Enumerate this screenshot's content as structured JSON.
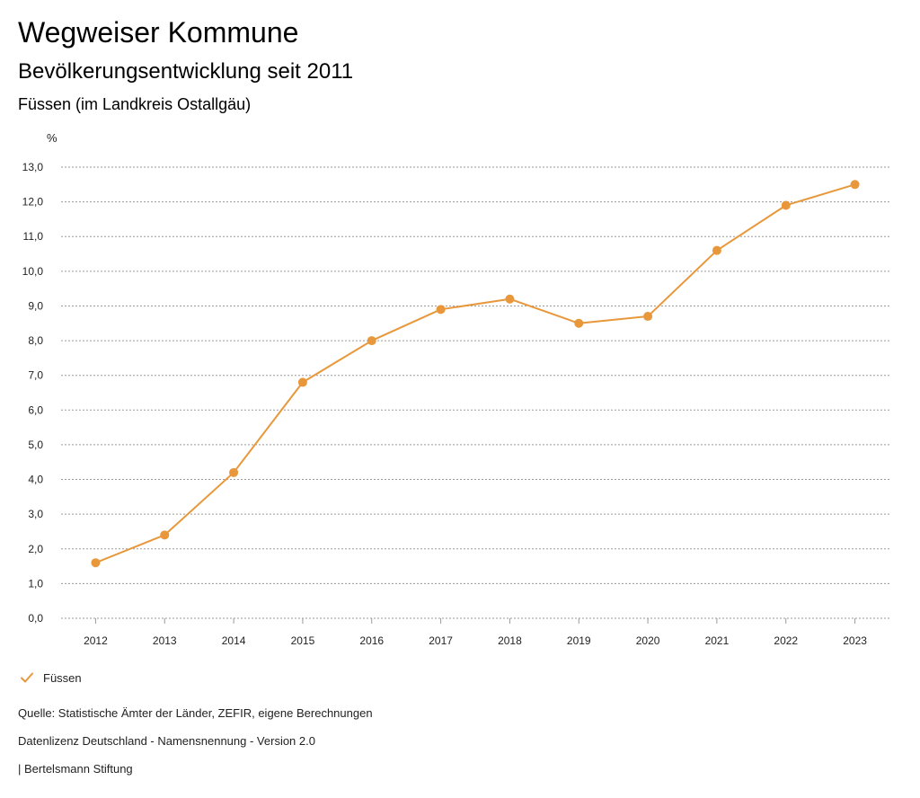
{
  "header": {
    "title": "Wegweiser Kommune",
    "subtitle": "Bevölkerungsentwicklung seit 2011",
    "region": "Füssen (im Landkreis Ostallgäu)"
  },
  "chart_data": {
    "type": "line",
    "title": "Bevölkerungsentwicklung seit 2011",
    "xlabel": "",
    "ylabel": "%",
    "x": [
      "2012",
      "2013",
      "2014",
      "2015",
      "2016",
      "2017",
      "2018",
      "2019",
      "2020",
      "2021",
      "2022",
      "2023"
    ],
    "series": [
      {
        "name": "Füssen",
        "color": "#e8983a",
        "values": [
          1.6,
          2.4,
          4.2,
          6.8,
          8.0,
          8.9,
          9.2,
          8.5,
          8.7,
          10.6,
          11.9,
          12.5
        ]
      }
    ],
    "ylim": [
      0,
      13
    ],
    "yticks": [
      "0,0",
      "1,0",
      "2,0",
      "3,0",
      "4,0",
      "5,0",
      "6,0",
      "7,0",
      "8,0",
      "9,0",
      "10,0",
      "11,0",
      "12,0",
      "13,0"
    ],
    "grid": true,
    "legend_position": "bottom-left"
  },
  "legend": {
    "label": "Füssen",
    "color": "#e8983a"
  },
  "footer": {
    "source": "Quelle: Statistische Ämter der Länder, ZEFIR, eigene Berechnungen",
    "license": "Datenlizenz Deutschland - Namensnennung - Version 2.0",
    "publisher": "| Bertelsmann Stiftung"
  }
}
